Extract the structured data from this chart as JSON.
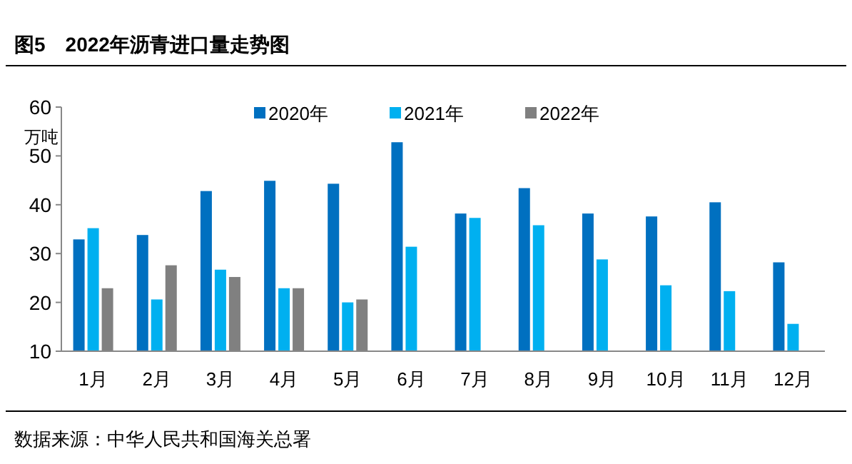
{
  "chart_data": {
    "type": "bar",
    "title": "图5　2022年沥青进口量走势图",
    "ylabel": "万吨",
    "categories": [
      "1月",
      "2月",
      "3月",
      "4月",
      "5月",
      "6月",
      "7月",
      "8月",
      "9月",
      "10月",
      "11月",
      "12月"
    ],
    "series": [
      {
        "name": "2020年",
        "color": "#0070c0",
        "values": [
          32.9,
          33.8,
          42.8,
          44.9,
          44.3,
          52.8,
          38.2,
          43.4,
          38.2,
          37.6,
          40.5,
          28.2
        ]
      },
      {
        "name": "2021年",
        "color": "#00b0f0",
        "values": [
          35.2,
          20.6,
          26.7,
          22.9,
          20.0,
          31.4,
          37.3,
          35.8,
          28.8,
          23.5,
          22.3,
          15.6
        ]
      },
      {
        "name": "2022年",
        "color": "#808080",
        "values": [
          22.9,
          27.6,
          25.2,
          22.9,
          20.6,
          null,
          null,
          null,
          null,
          null,
          null,
          null
        ]
      }
    ],
    "ylim": [
      10,
      60
    ],
    "yticks": [
      10,
      20,
      30,
      40,
      50,
      60
    ],
    "grid": false,
    "legend": "top",
    "annotations": [
      "数据来源：中华人民共和国海关总署"
    ]
  }
}
